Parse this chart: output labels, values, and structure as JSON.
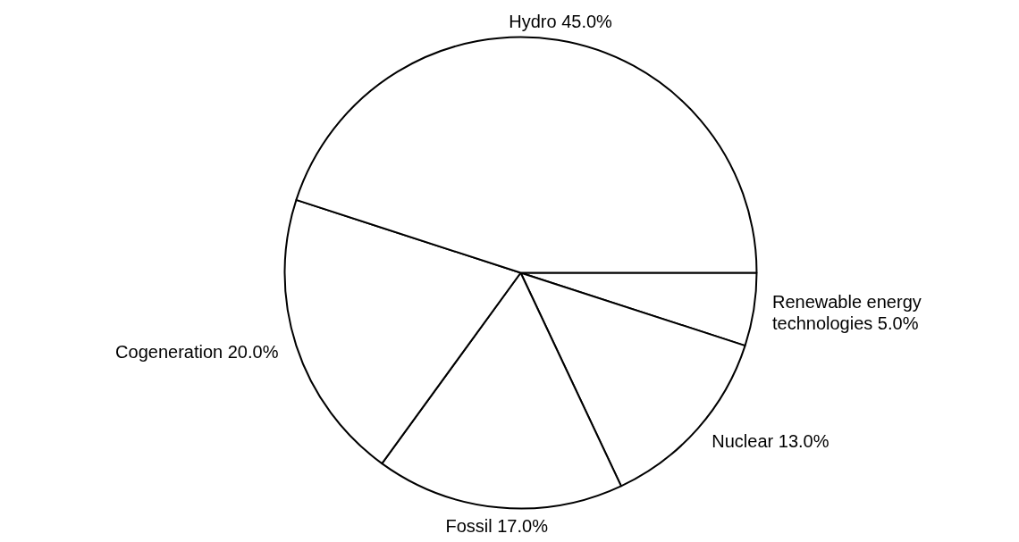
{
  "chart_data": {
    "type": "pie",
    "categories": [
      "Renewable energy technologies",
      "Nuclear",
      "Fossil",
      "Cogeneration",
      "Hydro"
    ],
    "values": [
      5,
      13,
      17,
      20,
      45
    ],
    "value_labels": [
      "5.0%",
      "13.0%",
      "17.0%",
      "20.0%",
      "45.0%"
    ],
    "colors": [
      "#ffffff",
      "#ffffff",
      "#ffffff",
      "#ffffff",
      "#ffffff"
    ],
    "legend": false
  }
}
